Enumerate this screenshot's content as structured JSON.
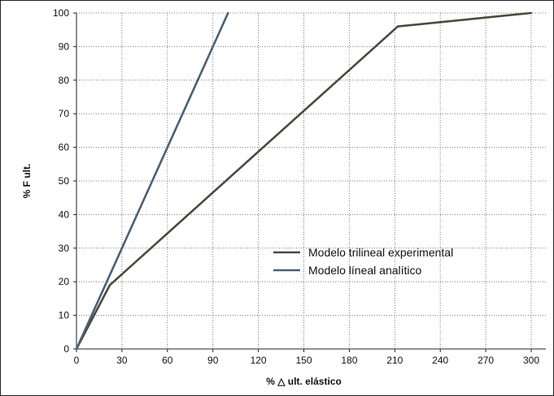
{
  "chart_data": {
    "type": "line",
    "xlabel": "% △ ult. elástico",
    "ylabel": "% F ult.",
    "xlim": [
      0,
      300
    ],
    "ylim": [
      0,
      100
    ],
    "xticks": [
      0,
      30,
      60,
      90,
      120,
      150,
      180,
      210,
      240,
      270,
      300
    ],
    "yticks": [
      0,
      10,
      20,
      30,
      40,
      50,
      60,
      70,
      80,
      90,
      100
    ],
    "grid": true,
    "legend_position": "center-right",
    "series": [
      {
        "name": "Modelo trilineal experimental",
        "color": "#4b4a3d",
        "x": [
          0,
          22,
          212,
          300
        ],
        "y": [
          0,
          19,
          96,
          100
        ]
      },
      {
        "name": "Modelo líneal analítico",
        "color": "#4a6077",
        "x": [
          0,
          100
        ],
        "y": [
          0,
          100
        ]
      }
    ]
  }
}
